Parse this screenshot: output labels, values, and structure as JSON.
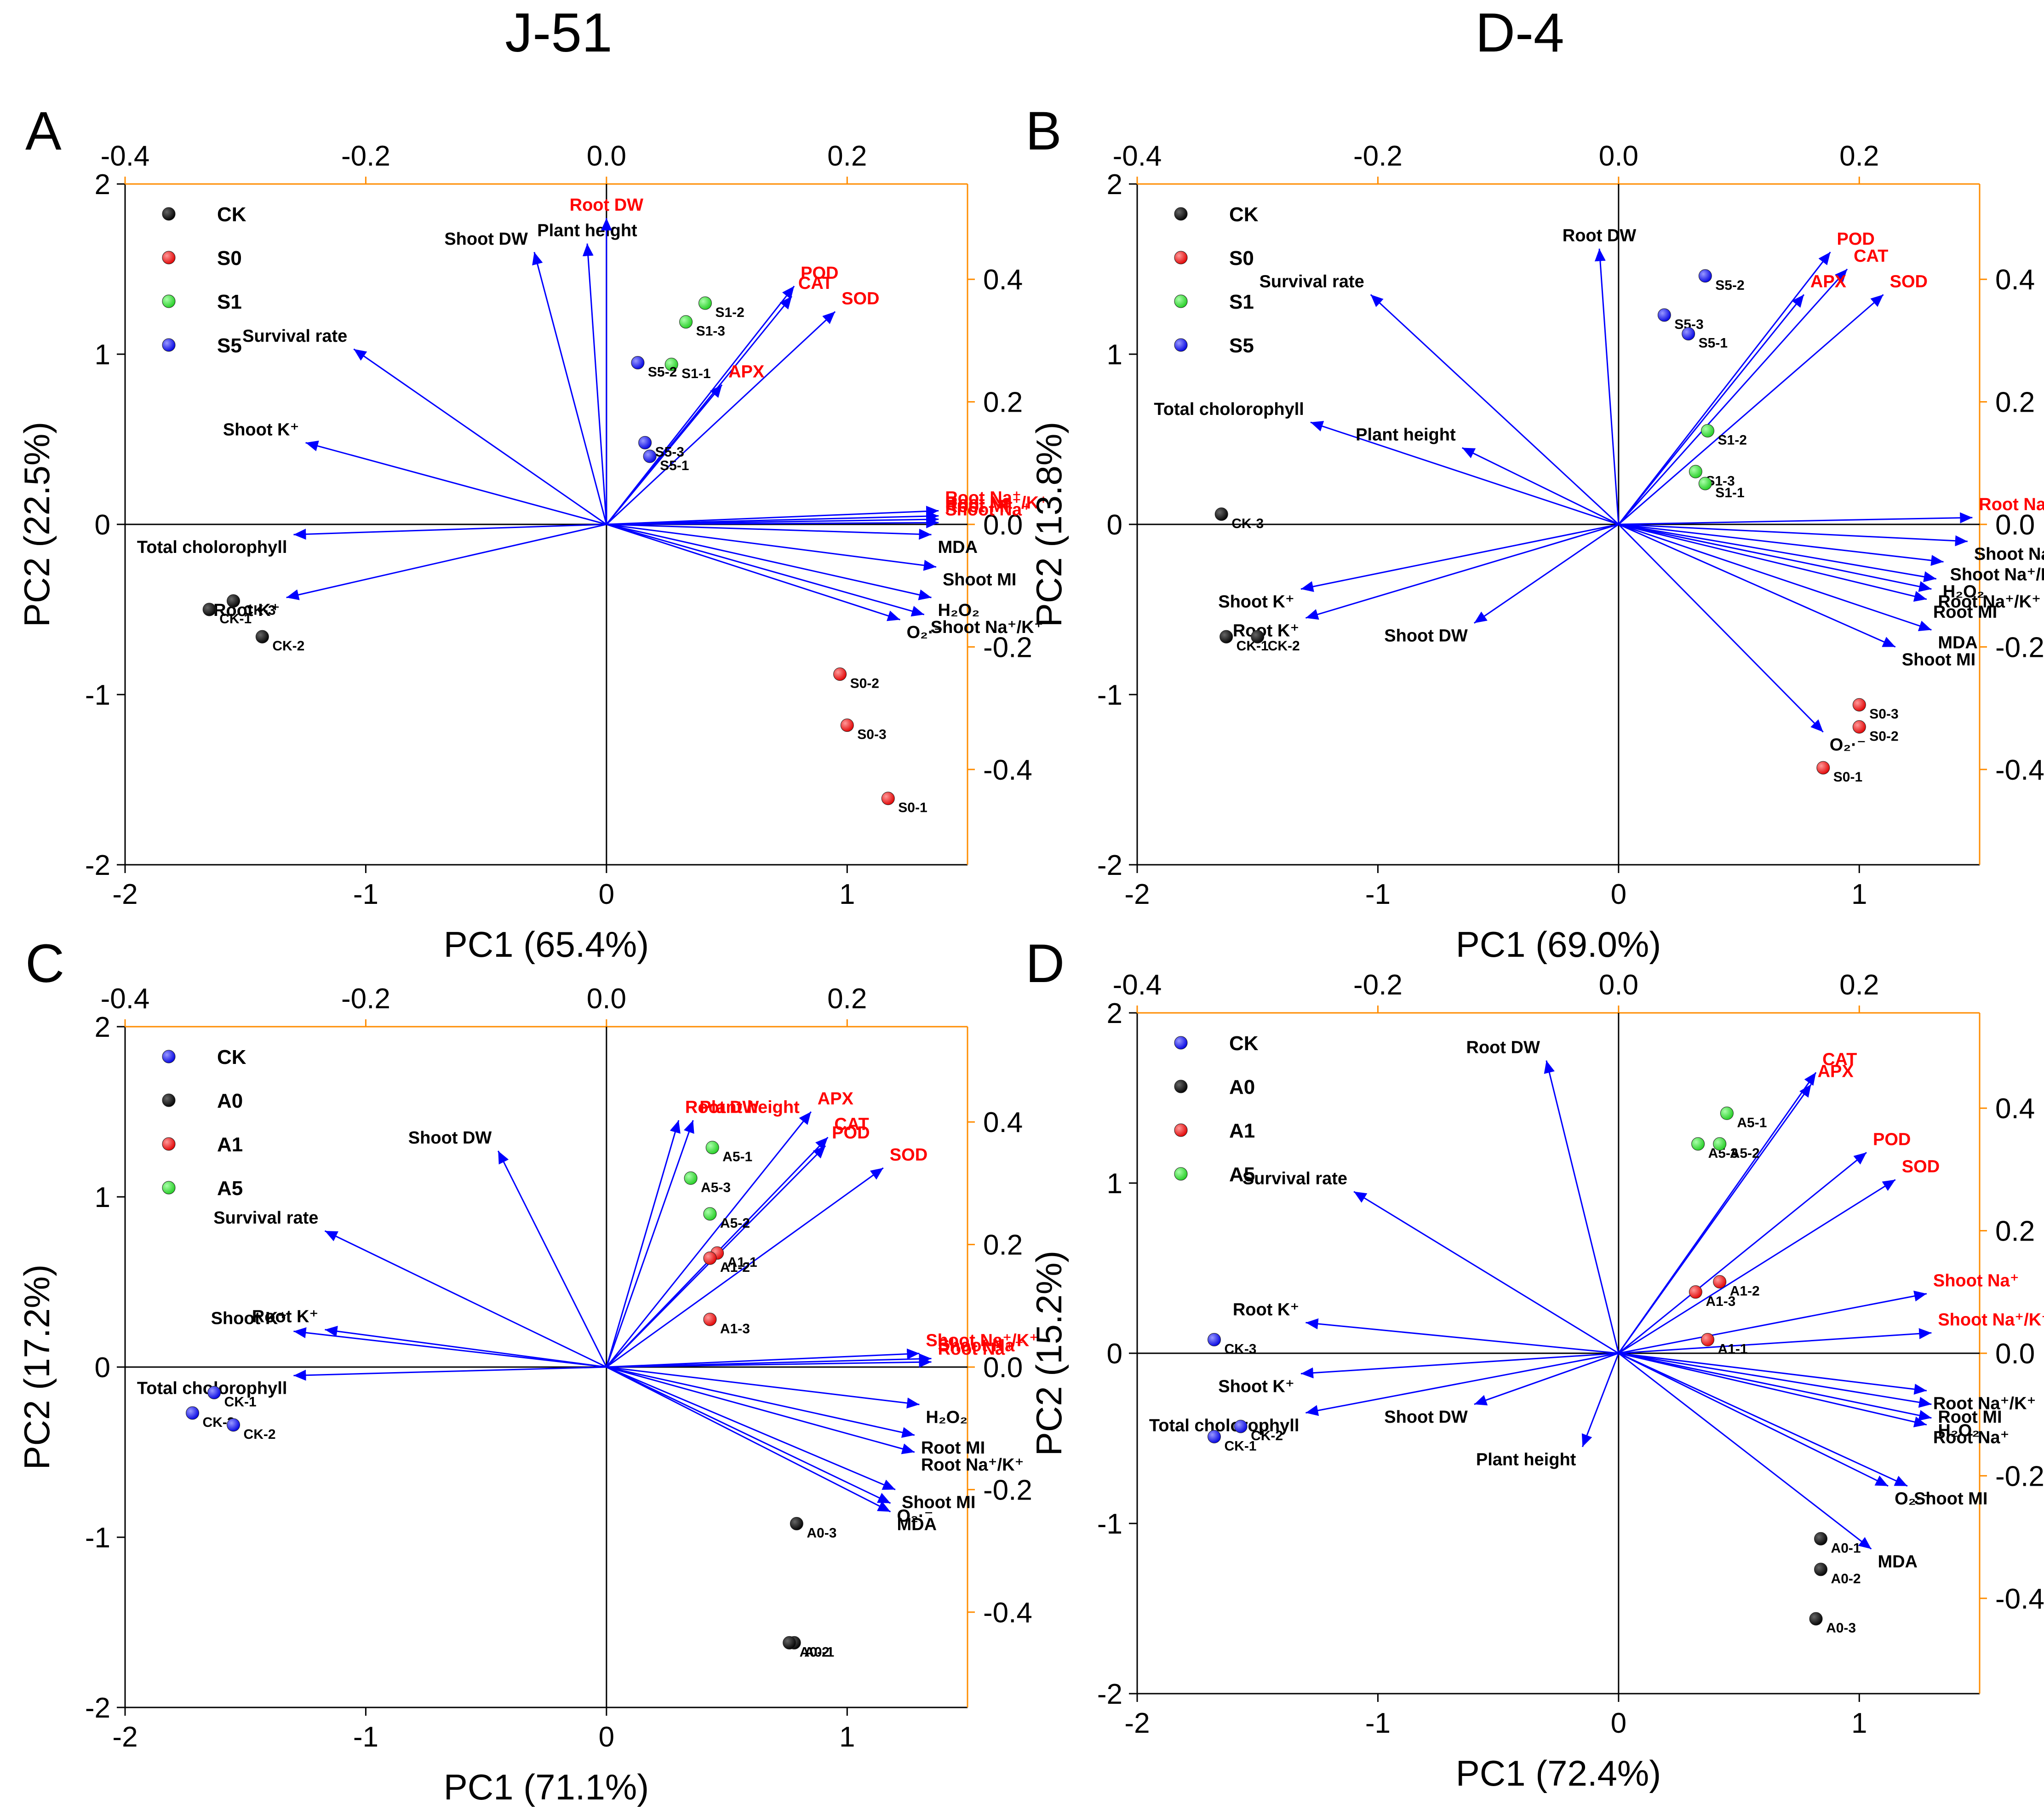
{
  "figure": {
    "col_titles": [
      "J-51",
      "D-4"
    ],
    "colors": {
      "axes": "#000000",
      "top_right_axis": "#FF8C00",
      "vector": "#0000FF",
      "label_red": "#FF0000",
      "label_black": "#000000"
    }
  },
  "chart_data": [
    {
      "type": "scatter",
      "panel": "A",
      "title": "J-51",
      "xlabel": "PC1 (65.4%)",
      "ylabel": "PC2 (22.5%)",
      "xlim": [
        -2,
        1.5
      ],
      "ylim": [
        -2,
        2
      ],
      "xticks": [
        -2,
        -1,
        0,
        1
      ],
      "yticks": [
        -2,
        -1,
        0,
        1,
        2
      ],
      "top_xticks": [
        -0.4,
        -0.2,
        0.0,
        0.2
      ],
      "right_yticks": [
        0.4,
        0.2,
        0.0,
        -0.2,
        -0.4
      ],
      "legend": [
        {
          "name": "CK",
          "color": "#000000"
        },
        {
          "name": "S0",
          "color": "#FF0000"
        },
        {
          "name": "S1",
          "color": "#00DD00"
        },
        {
          "name": "S5",
          "color": "#0000FF"
        }
      ],
      "points": [
        {
          "label": "CK-1",
          "group": "CK",
          "x": -1.65,
          "y": -0.5
        },
        {
          "label": "CK-3",
          "group": "CK",
          "x": -1.55,
          "y": -0.45
        },
        {
          "label": "CK-2",
          "group": "CK",
          "x": -1.43,
          "y": -0.66
        },
        {
          "label": "S0-2",
          "group": "S0",
          "x": 0.97,
          "y": -0.88
        },
        {
          "label": "S0-3",
          "group": "S0",
          "x": 1.0,
          "y": -1.18
        },
        {
          "label": "S0-1",
          "group": "S0",
          "x": 1.17,
          "y": -1.61
        },
        {
          "label": "S1-2",
          "group": "S1",
          "x": 0.41,
          "y": 1.3
        },
        {
          "label": "S1-3",
          "group": "S1",
          "x": 0.33,
          "y": 1.19
        },
        {
          "label": "S1-1",
          "group": "S1",
          "x": 0.27,
          "y": 0.94
        },
        {
          "label": "S5-2",
          "group": "S5",
          "x": 0.13,
          "y": 0.95
        },
        {
          "label": "S5-3",
          "group": "S5",
          "x": 0.16,
          "y": 0.48
        },
        {
          "label": "S5-1",
          "group": "S5",
          "x": 0.18,
          "y": 0.4
        }
      ],
      "vectors": [
        {
          "label": "Plant height",
          "red": false,
          "x": -0.08,
          "y": 1.65
        },
        {
          "label": "Root DW",
          "red": true,
          "x": 0.0,
          "y": 1.8
        },
        {
          "label": "Shoot DW",
          "red": false,
          "x": -0.3,
          "y": 1.6
        },
        {
          "label": "Survival rate",
          "red": false,
          "x": -1.05,
          "y": 1.03
        },
        {
          "label": "Shoot K⁺",
          "red": false,
          "x": -1.25,
          "y": 0.48
        },
        {
          "label": "Total cholorophyll",
          "red": false,
          "x": -1.3,
          "y": -0.06
        },
        {
          "label": "Root K⁺",
          "red": false,
          "x": -1.33,
          "y": -0.43
        },
        {
          "label": "POD",
          "red": true,
          "x": 0.78,
          "y": 1.4
        },
        {
          "label": "CAT",
          "red": true,
          "x": 0.77,
          "y": 1.34
        },
        {
          "label": "SOD",
          "red": true,
          "x": 0.95,
          "y": 1.25
        },
        {
          "label": "APX",
          "red": true,
          "x": 0.48,
          "y": 0.82
        },
        {
          "label": "Root Na⁺",
          "red": true,
          "x": 1.38,
          "y": 0.08
        },
        {
          "label": "Root Na⁺/K⁺",
          "red": true,
          "x": 1.38,
          "y": 0.05
        },
        {
          "label": "Root MI",
          "red": true,
          "x": 1.38,
          "y": 0.03
        },
        {
          "label": "Shoot Na⁺",
          "red": true,
          "x": 1.38,
          "y": 0.01
        },
        {
          "label": "MDA",
          "red": false,
          "x": 1.35,
          "y": -0.06
        },
        {
          "label": "Shoot MI",
          "red": false,
          "x": 1.37,
          "y": -0.25
        },
        {
          "label": "H₂O₂",
          "red": false,
          "x": 1.35,
          "y": -0.43
        },
        {
          "label": "Shoot Na⁺/K⁺",
          "red": false,
          "x": 1.32,
          "y": -0.53
        },
        {
          "label": "O₂·⁻",
          "red": false,
          "x": 1.22,
          "y": -0.56
        }
      ]
    },
    {
      "type": "scatter",
      "panel": "B",
      "title": "D-4",
      "xlabel": "PC1 (69.0%)",
      "ylabel": "PC2 (13.8%)",
      "xlim": [
        -2,
        1.5
      ],
      "ylim": [
        -2,
        2
      ],
      "xticks": [
        -2,
        -1,
        0,
        1
      ],
      "yticks": [
        -2,
        -1,
        0,
        1,
        2
      ],
      "top_xticks": [
        -0.4,
        -0.2,
        0.0,
        0.2
      ],
      "right_yticks": [
        0.4,
        0.2,
        0.0,
        -0.2,
        -0.4
      ],
      "legend": [
        {
          "name": "CK",
          "color": "#000000"
        },
        {
          "name": "S0",
          "color": "#FF0000"
        },
        {
          "name": "S1",
          "color": "#00DD00"
        },
        {
          "name": "S5",
          "color": "#0000FF"
        }
      ],
      "points": [
        {
          "label": "CK-3",
          "group": "CK",
          "x": -1.65,
          "y": 0.06
        },
        {
          "label": "CK-1",
          "group": "CK",
          "x": -1.63,
          "y": -0.66
        },
        {
          "label": "CK-2",
          "group": "CK",
          "x": -1.5,
          "y": -0.66
        },
        {
          "label": "S0-3",
          "group": "S0",
          "x": 1.0,
          "y": -1.06
        },
        {
          "label": "S0-2",
          "group": "S0",
          "x": 1.0,
          "y": -1.19
        },
        {
          "label": "S0-1",
          "group": "S0",
          "x": 0.85,
          "y": -1.43
        },
        {
          "label": "S1-2",
          "group": "S1",
          "x": 0.37,
          "y": 0.55
        },
        {
          "label": "S1-3",
          "group": "S1",
          "x": 0.32,
          "y": 0.31
        },
        {
          "label": "S1-1",
          "group": "S1",
          "x": 0.36,
          "y": 0.24
        },
        {
          "label": "S5-2",
          "group": "S5",
          "x": 0.36,
          "y": 1.46
        },
        {
          "label": "S5-3",
          "group": "S5",
          "x": 0.19,
          "y": 1.23
        },
        {
          "label": "S5-1",
          "group": "S5",
          "x": 0.29,
          "y": 1.12
        }
      ],
      "vectors": [
        {
          "label": "Root DW",
          "red": false,
          "x": -0.08,
          "y": 1.62
        },
        {
          "label": "Survival rate",
          "red": false,
          "x": -1.03,
          "y": 1.35
        },
        {
          "label": "Total cholorophyll",
          "red": false,
          "x": -1.28,
          "y": 0.6
        },
        {
          "label": "Plant height",
          "red": false,
          "x": -0.65,
          "y": 0.45
        },
        {
          "label": "Shoot K⁺",
          "red": false,
          "x": -1.32,
          "y": -0.38
        },
        {
          "label": "Root K⁺",
          "red": false,
          "x": -1.3,
          "y": -0.55
        },
        {
          "label": "Shoot DW",
          "red": false,
          "x": -0.6,
          "y": -0.58
        },
        {
          "label": "POD",
          "red": true,
          "x": 0.88,
          "y": 1.6
        },
        {
          "label": "CAT",
          "red": true,
          "x": 0.95,
          "y": 1.5
        },
        {
          "label": "APX",
          "red": true,
          "x": 0.77,
          "y": 1.35
        },
        {
          "label": "SOD",
          "red": true,
          "x": 1.1,
          "y": 1.35
        },
        {
          "label": "Root Na⁺",
          "red": true,
          "x": 1.47,
          "y": 0.04
        },
        {
          "label": "Shoot Na⁺",
          "red": false,
          "x": 1.45,
          "y": -0.1
        },
        {
          "label": "Shoot Na⁺/K⁺",
          "red": false,
          "x": 1.35,
          "y": -0.22
        },
        {
          "label": "H₂O₂",
          "red": false,
          "x": 1.32,
          "y": -0.32
        },
        {
          "label": "Root Na⁺/K⁺",
          "red": false,
          "x": 1.3,
          "y": -0.38
        },
        {
          "label": "Root MI",
          "red": false,
          "x": 1.28,
          "y": -0.44
        },
        {
          "label": "MDA",
          "red": false,
          "x": 1.3,
          "y": -0.62
        },
        {
          "label": "Shoot MI",
          "red": false,
          "x": 1.15,
          "y": -0.72
        },
        {
          "label": "O₂·⁻",
          "red": false,
          "x": 0.85,
          "y": -1.22
        }
      ]
    },
    {
      "type": "scatter",
      "panel": "C",
      "xlabel": "PC1 (71.1%)",
      "ylabel": "PC2 (17.2%)",
      "xlim": [
        -2,
        1.5
      ],
      "ylim": [
        -2,
        2
      ],
      "xticks": [
        -2,
        -1,
        0,
        1
      ],
      "yticks": [
        -2,
        -1,
        0,
        1,
        2
      ],
      "top_xticks": [
        -0.4,
        -0.2,
        0.0,
        0.2
      ],
      "right_yticks": [
        0.4,
        0.2,
        0.0,
        -0.2,
        -0.4
      ],
      "legend": [
        {
          "name": "CK",
          "color": "#0000FF"
        },
        {
          "name": "A0",
          "color": "#000000"
        },
        {
          "name": "A1",
          "color": "#FF0000"
        },
        {
          "name": "A5",
          "color": "#00DD00"
        }
      ],
      "points": [
        {
          "label": "CK-1",
          "group": "CK",
          "x": -1.63,
          "y": -0.15
        },
        {
          "label": "CK-3",
          "group": "CK",
          "x": -1.72,
          "y": -0.27
        },
        {
          "label": "CK-2",
          "group": "CK",
          "x": -1.55,
          "y": -0.34
        },
        {
          "label": "A0-3",
          "group": "A0",
          "x": 0.79,
          "y": -0.92
        },
        {
          "label": "A0-1",
          "group": "A0",
          "x": 0.78,
          "y": -1.62
        },
        {
          "label": "A0-2",
          "group": "A0",
          "x": 0.76,
          "y": -1.62
        },
        {
          "label": "A1-1",
          "group": "A1",
          "x": 0.46,
          "y": 0.67
        },
        {
          "label": "A1-2",
          "group": "A1",
          "x": 0.43,
          "y": 0.64
        },
        {
          "label": "A1-3",
          "group": "A1",
          "x": 0.43,
          "y": 0.28
        },
        {
          "label": "A5-1",
          "group": "A5",
          "x": 0.44,
          "y": 1.29
        },
        {
          "label": "A5-3",
          "group": "A5",
          "x": 0.35,
          "y": 1.11
        },
        {
          "label": "A5-2",
          "group": "A5",
          "x": 0.43,
          "y": 0.9
        }
      ],
      "vectors": [
        {
          "label": "Root DW",
          "red": true,
          "x": 0.3,
          "y": 1.45
        },
        {
          "label": "Plant height",
          "red": true,
          "x": 0.36,
          "y": 1.45
        },
        {
          "label": "APX",
          "red": true,
          "x": 0.85,
          "y": 1.5
        },
        {
          "label": "CAT",
          "red": true,
          "x": 0.92,
          "y": 1.35
        },
        {
          "label": "POD",
          "red": true,
          "x": 0.91,
          "y": 1.3
        },
        {
          "label": "SOD",
          "red": true,
          "x": 1.15,
          "y": 1.17
        },
        {
          "label": "Shoot DW",
          "red": false,
          "x": -0.45,
          "y": 1.27
        },
        {
          "label": "Survival rate",
          "red": false,
          "x": -1.17,
          "y": 0.8
        },
        {
          "label": "Root K⁺",
          "red": false,
          "x": -1.17,
          "y": 0.22
        },
        {
          "label": "Shoot K⁺",
          "red": false,
          "x": -1.3,
          "y": 0.21
        },
        {
          "label": "Total cholorophyll",
          "red": false,
          "x": -1.3,
          "y": -0.05
        },
        {
          "label": "Shoot Na⁺/K⁺",
          "red": true,
          "x": 1.3,
          "y": 0.08
        },
        {
          "label": "Shoot Na⁺",
          "red": true,
          "x": 1.35,
          "y": 0.05
        },
        {
          "label": "Root Na⁺",
          "red": true,
          "x": 1.35,
          "y": 0.03
        },
        {
          "label": "H₂O₂",
          "red": false,
          "x": 1.3,
          "y": -0.22
        },
        {
          "label": "Root MI",
          "red": false,
          "x": 1.28,
          "y": -0.4
        },
        {
          "label": "Root Na⁺/K⁺",
          "red": false,
          "x": 1.28,
          "y": -0.5
        },
        {
          "label": "Shoot MI",
          "red": false,
          "x": 1.2,
          "y": -0.72
        },
        {
          "label": "O₂·⁻",
          "red": false,
          "x": 1.18,
          "y": -0.8
        },
        {
          "label": "MDA",
          "red": false,
          "x": 1.18,
          "y": -0.85
        }
      ]
    },
    {
      "type": "scatter",
      "panel": "D",
      "xlabel": "PC1 (72.4%)",
      "ylabel": "PC2 (15.2%)",
      "xlim": [
        -2,
        1.5
      ],
      "ylim": [
        -2,
        2
      ],
      "xticks": [
        -2,
        -1,
        0,
        1
      ],
      "yticks": [
        -2,
        -1,
        0,
        1,
        2
      ],
      "top_xticks": [
        -0.4,
        -0.2,
        0.0,
        0.2
      ],
      "right_yticks": [
        0.4,
        0.2,
        0.0,
        -0.2,
        -0.4
      ],
      "legend": [
        {
          "name": "CK",
          "color": "#0000FF"
        },
        {
          "name": "A0",
          "color": "#000000"
        },
        {
          "name": "A1",
          "color": "#FF0000"
        },
        {
          "name": "A5",
          "color": "#00DD00"
        }
      ],
      "points": [
        {
          "label": "CK-3",
          "group": "CK",
          "x": -1.68,
          "y": 0.08
        },
        {
          "label": "CK-2",
          "group": "CK",
          "x": -1.57,
          "y": -0.43
        },
        {
          "label": "CK-1",
          "group": "CK",
          "x": -1.68,
          "y": -0.49
        },
        {
          "label": "A0-1",
          "group": "A0",
          "x": 0.84,
          "y": -1.09
        },
        {
          "label": "A0-2",
          "group": "A0",
          "x": 0.84,
          "y": -1.27
        },
        {
          "label": "A0-3",
          "group": "A0",
          "x": 0.82,
          "y": -1.56
        },
        {
          "label": "A1-2",
          "group": "A1",
          "x": 0.42,
          "y": 0.42
        },
        {
          "label": "A1-3",
          "group": "A1",
          "x": 0.32,
          "y": 0.36
        },
        {
          "label": "A1-1",
          "group": "A1",
          "x": 0.37,
          "y": 0.08
        },
        {
          "label": "A5-1",
          "group": "A5",
          "x": 0.45,
          "y": 1.41
        },
        {
          "label": "A5-3",
          "group": "A5",
          "x": 0.33,
          "y": 1.23
        },
        {
          "label": "A5-2",
          "group": "A5",
          "x": 0.42,
          "y": 1.23
        }
      ],
      "vectors": [
        {
          "label": "Root DW",
          "red": false,
          "x": -0.3,
          "y": 1.72
        },
        {
          "label": "Survival rate",
          "red": false,
          "x": -1.1,
          "y": 0.95
        },
        {
          "label": "Root K⁺",
          "red": false,
          "x": -1.3,
          "y": 0.18
        },
        {
          "label": "Shoot K⁺",
          "red": false,
          "x": -1.32,
          "y": -0.12
        },
        {
          "label": "Total cholorophyll",
          "red": false,
          "x": -1.3,
          "y": -0.35
        },
        {
          "label": "Shoot DW",
          "red": false,
          "x": -0.6,
          "y": -0.3
        },
        {
          "label": "Plant height",
          "red": false,
          "x": -0.15,
          "y": -0.55
        },
        {
          "label": "CAT",
          "red": true,
          "x": 0.82,
          "y": 1.65
        },
        {
          "label": "APX",
          "red": true,
          "x": 0.8,
          "y": 1.58
        },
        {
          "label": "POD",
          "red": true,
          "x": 1.03,
          "y": 1.18
        },
        {
          "label": "SOD",
          "red": true,
          "x": 1.15,
          "y": 1.02
        },
        {
          "label": "Shoot Na⁺",
          "red": true,
          "x": 1.28,
          "y": 0.35
        },
        {
          "label": "Shoot Na⁺/K⁺",
          "red": true,
          "x": 1.3,
          "y": 0.12
        },
        {
          "label": "Root Na⁺/K⁺",
          "red": false,
          "x": 1.28,
          "y": -0.22
        },
        {
          "label": "Root MI",
          "red": false,
          "x": 1.3,
          "y": -0.3
        },
        {
          "label": "H₂O₂",
          "red": false,
          "x": 1.3,
          "y": -0.38
        },
        {
          "label": "Root Na⁺",
          "red": false,
          "x": 1.28,
          "y": -0.42
        },
        {
          "label": "Shoot MI",
          "red": false,
          "x": 1.2,
          "y": -0.78
        },
        {
          "label": "O₂·⁻",
          "red": false,
          "x": 1.12,
          "y": -0.78
        },
        {
          "label": "MDA",
          "red": false,
          "x": 1.05,
          "y": -1.15
        }
      ]
    }
  ]
}
